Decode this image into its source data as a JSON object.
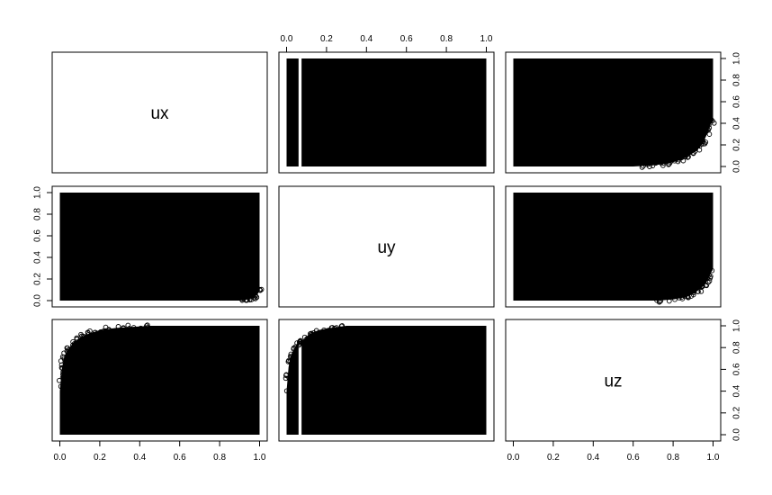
{
  "chart_data": {
    "type": "scatter",
    "variables": [
      "ux",
      "uy",
      "uz"
    ],
    "axis_range": [
      0,
      1
    ],
    "ticks": [
      0.0,
      0.2,
      0.4,
      0.6,
      0.8,
      1.0
    ],
    "tick_labels": [
      "0.0",
      "0.2",
      "0.4",
      "0.6",
      "0.8",
      "1.0"
    ],
    "grid": false,
    "panels": [
      {
        "row": 1,
        "col": 2,
        "x": "uy",
        "y": "ux",
        "x_range": [
          0,
          1
        ],
        "y_range": [
          0,
          1
        ],
        "gap_x": [
          0.06,
          0.075
        ],
        "boundary_x": [],
        "boundary_y": []
      },
      {
        "row": 1,
        "col": 3,
        "x": "uz",
        "y": "ux",
        "x_range": [
          0,
          1
        ],
        "y_range": [
          0,
          1
        ],
        "gap_x": [],
        "boundary_x": [
          0.6,
          0.7,
          0.78,
          0.84,
          0.88,
          0.92,
          0.95,
          0.97,
          0.985,
          1.0
        ],
        "boundary_y": [
          0.0,
          0.01,
          0.03,
          0.06,
          0.1,
          0.15,
          0.22,
          0.3,
          0.38,
          0.44
        ]
      },
      {
        "row": 2,
        "col": 1,
        "x": "ux",
        "y": "uy",
        "x_range": [
          0,
          1
        ],
        "y_range": [
          0,
          1
        ],
        "gap_x": [],
        "boundary_x": [
          0.9,
          0.94,
          0.97,
          0.99,
          1.0
        ],
        "boundary_y": [
          0.0,
          0.01,
          0.03,
          0.06,
          0.1
        ]
      },
      {
        "row": 2,
        "col": 3,
        "x": "uz",
        "y": "uy",
        "x_range": [
          0,
          1
        ],
        "y_range": [
          0,
          1
        ],
        "gap_x": [],
        "boundary_x": [
          0.72,
          0.8,
          0.86,
          0.9,
          0.93,
          0.96,
          0.98,
          1.0
        ],
        "boundary_y": [
          0.0,
          0.01,
          0.03,
          0.06,
          0.1,
          0.15,
          0.22,
          0.3
        ]
      },
      {
        "row": 3,
        "col": 1,
        "x": "ux",
        "y": "uz",
        "x_range": [
          0,
          1
        ],
        "y_range": [
          0,
          1
        ],
        "gap_x": [],
        "boundary_x": [
          0.0,
          0.01,
          0.02,
          0.04,
          0.07,
          0.1,
          0.15,
          0.2,
          0.28,
          0.36,
          0.45
        ],
        "boundary_y": [
          0.4,
          0.6,
          0.7,
          0.78,
          0.85,
          0.89,
          0.93,
          0.96,
          0.98,
          0.99,
          1.0
        ]
      },
      {
        "row": 3,
        "col": 2,
        "x": "uy",
        "y": "uz",
        "x_range": [
          0,
          1
        ],
        "y_range": [
          0,
          1
        ],
        "gap_x": [
          0.06,
          0.075
        ],
        "boundary_x": [
          0.0,
          0.01,
          0.02,
          0.04,
          0.06,
          0.075,
          0.11,
          0.16,
          0.22,
          0.3
        ],
        "boundary_y": [
          0.4,
          0.62,
          0.72,
          0.8,
          0.85,
          0.85,
          0.92,
          0.96,
          0.98,
          1.0
        ]
      }
    ]
  }
}
